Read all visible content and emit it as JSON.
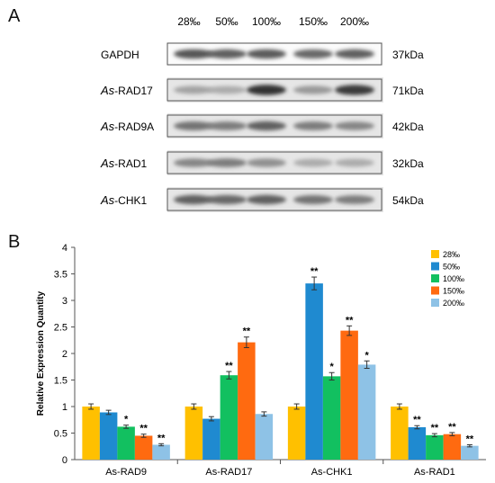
{
  "panel_a": {
    "label": "A",
    "lane_labels": [
      "28‰",
      "50‰",
      "100‰",
      "150‰",
      "200‰"
    ],
    "blots": [
      {
        "prefix": "",
        "name": "GAPDH",
        "kda": "37kDa",
        "bands": [
          0.65,
          0.6,
          0.62,
          0.55,
          0.6
        ]
      },
      {
        "prefix": "As",
        "name": "-RAD17",
        "kda": "71kDa",
        "bands": [
          0.25,
          0.2,
          0.85,
          0.3,
          0.8
        ]
      },
      {
        "prefix": "As",
        "name": "-RAD9A",
        "kda": "42kDa",
        "bands": [
          0.5,
          0.45,
          0.6,
          0.45,
          0.4
        ]
      },
      {
        "prefix": "As",
        "name": "-RAD1",
        "kda": "32kDa",
        "bands": [
          0.4,
          0.45,
          0.35,
          0.2,
          0.2
        ]
      },
      {
        "prefix": "As",
        "name": "-CHK1",
        "kda": "54kDa",
        "bands": [
          0.6,
          0.55,
          0.6,
          0.5,
          0.45
        ]
      }
    ]
  },
  "chart_data": {
    "panel_label": "B",
    "type": "bar",
    "ylabel": "Relative Expression Quantity",
    "ylim": [
      0,
      4
    ],
    "yticks": [
      "0",
      "0.5",
      "1",
      "1.5",
      "2",
      "2.5",
      "3",
      "3.5",
      "4"
    ],
    "categories": [
      "As-RAD9",
      "As-RAD17",
      "As-CHK1",
      "As-RAD1"
    ],
    "legend_position": "top-right",
    "series": [
      {
        "name": "28‰",
        "color": "#ffc000",
        "values": [
          1.0,
          1.0,
          1.0,
          1.0
        ],
        "errors": [
          0.05,
          0.05,
          0.05,
          0.05
        ],
        "sig": [
          "",
          "",
          "",
          ""
        ]
      },
      {
        "name": "50‰",
        "color": "#1f8ad0",
        "values": [
          0.89,
          0.77,
          3.32,
          0.61
        ],
        "errors": [
          0.04,
          0.04,
          0.12,
          0.03
        ],
        "sig": [
          "",
          "",
          "**",
          "**"
        ]
      },
      {
        "name": "100‰",
        "color": "#12c060",
        "values": [
          0.62,
          1.59,
          1.57,
          0.46
        ],
        "errors": [
          0.03,
          0.07,
          0.07,
          0.03
        ],
        "sig": [
          "*",
          "**",
          "*",
          "**"
        ]
      },
      {
        "name": "150‰",
        "color": "#ff6a10",
        "values": [
          0.45,
          2.21,
          2.43,
          0.48
        ],
        "errors": [
          0.03,
          0.1,
          0.09,
          0.03
        ],
        "sig": [
          "**",
          "**",
          "**",
          "**"
        ]
      },
      {
        "name": "200‰",
        "color": "#8ec2e6",
        "values": [
          0.28,
          0.86,
          1.79,
          0.26
        ],
        "errors": [
          0.02,
          0.04,
          0.07,
          0.02
        ],
        "sig": [
          "**",
          "",
          "*",
          "**"
        ]
      }
    ]
  }
}
